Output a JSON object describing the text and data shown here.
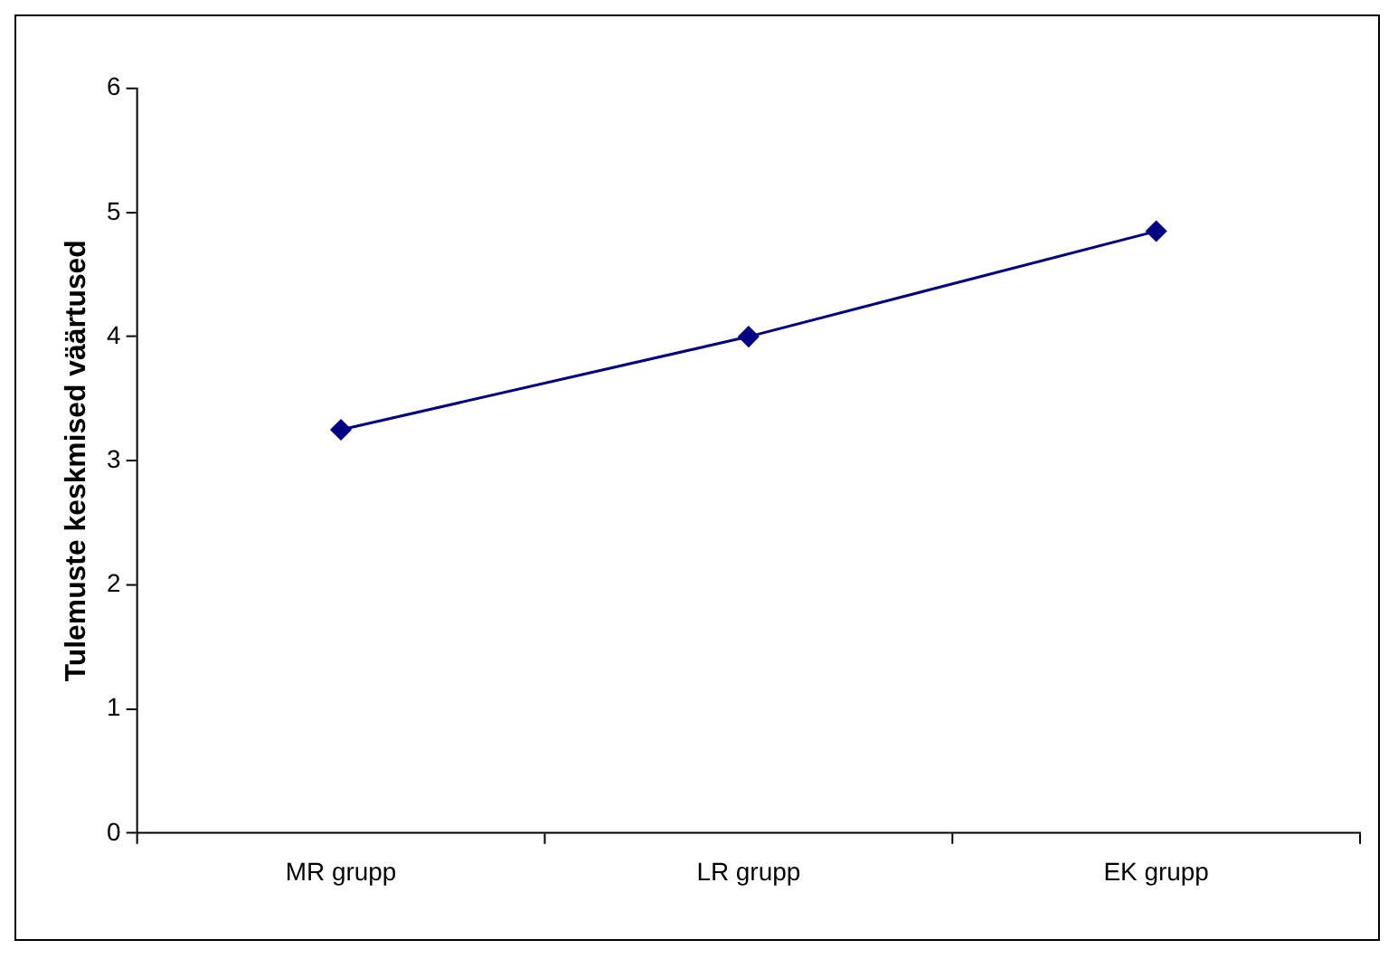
{
  "chart_data": {
    "type": "line",
    "ylabel": "Tulemuste keskmised väärtused",
    "categories": [
      "MR grupp",
      "LR grupp",
      "EK grupp"
    ],
    "series": [
      {
        "color": "#000080",
        "values": [
          3.25,
          4.0,
          4.85
        ]
      }
    ],
    "ylim": [
      0,
      6
    ],
    "yticks": [
      0,
      1,
      2,
      3,
      4,
      5,
      6
    ],
    "grid": false,
    "legend": false,
    "marker": "diamond",
    "line_style": "solid"
  }
}
